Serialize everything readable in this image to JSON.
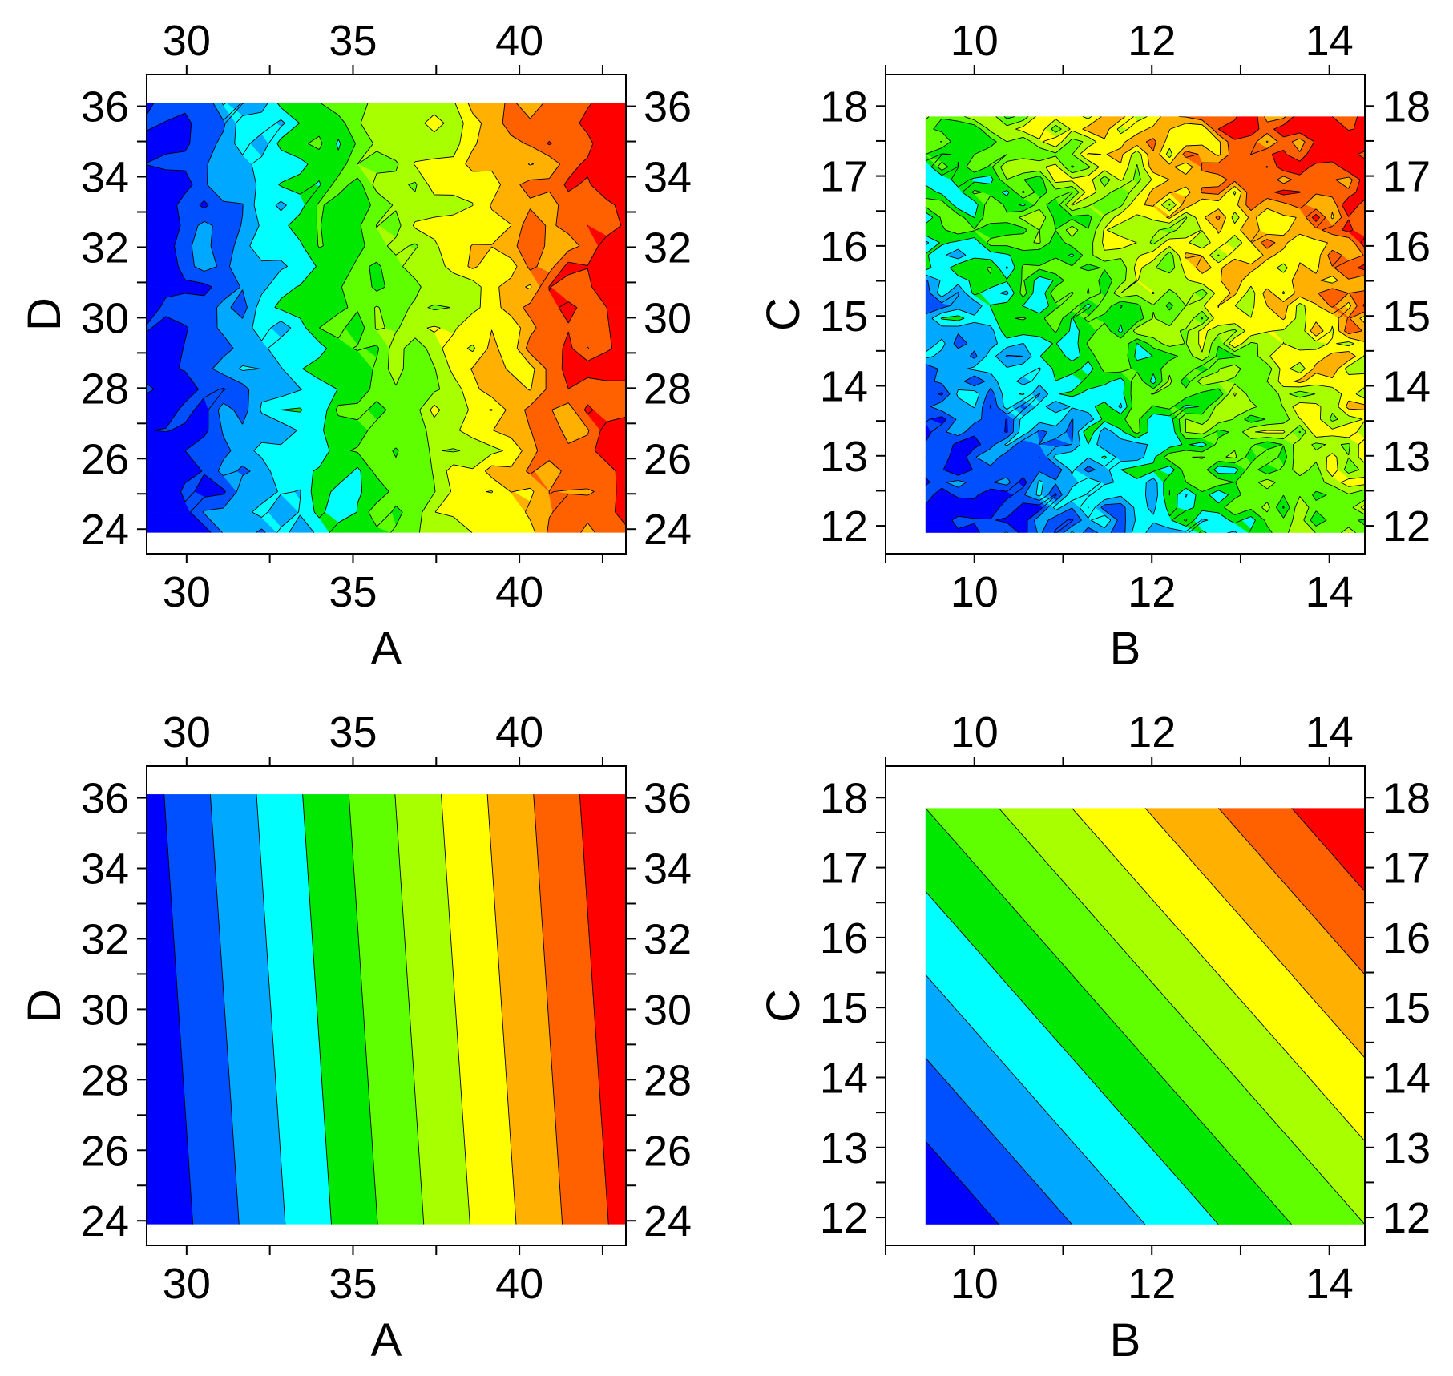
{
  "palette": [
    "#0000ff",
    "#0050ff",
    "#00a8ff",
    "#00ffff",
    "#00e800",
    "#60ff00",
    "#a8ff00",
    "#ffff00",
    "#ffb000",
    "#ff6000",
    "#ff0000"
  ],
  "chart_data": [
    {
      "type": "heatmap",
      "subtype": "filled-contour",
      "xlabel": "A",
      "ylabel": "D",
      "x_ticks": [
        30,
        35,
        40
      ],
      "y_ticks": [
        24,
        26,
        28,
        30,
        32,
        34,
        36
      ],
      "x_axis_range": [
        28.8,
        43.2
      ],
      "y_axis_range": [
        23.3,
        36.9
      ],
      "data_extent": {
        "x": [
          28.8,
          43.2
        ],
        "y": [
          23.9,
          36.1
        ]
      },
      "axes_mirrored": true,
      "surface": "noisy",
      "trend": {
        "x_coef": 1.0,
        "y_coef": 0.06
      },
      "grid_size": [
        26,
        22
      ],
      "noise": 0.09,
      "seed": 11,
      "levels": 11
    },
    {
      "type": "heatmap",
      "subtype": "filled-contour",
      "xlabel": "B",
      "ylabel": "C",
      "x_ticks": [
        10,
        12,
        14
      ],
      "y_ticks": [
        12,
        13,
        14,
        15,
        16,
        17,
        18
      ],
      "x_axis_range": [
        9.0,
        14.4
      ],
      "y_axis_range": [
        11.6,
        18.45
      ],
      "data_extent": {
        "x": [
          9.45,
          14.4
        ],
        "y": [
          11.9,
          17.85
        ]
      },
      "axes_mirrored": true,
      "surface": "noisy",
      "trend": {
        "x_coef": 0.6,
        "y_coef": 0.5
      },
      "grid_size": [
        28,
        34
      ],
      "noise": 0.14,
      "seed": 23,
      "levels": 11
    },
    {
      "type": "heatmap",
      "subtype": "filled-contour",
      "xlabel": "A",
      "ylabel": "D",
      "x_ticks": [
        30,
        35,
        40
      ],
      "y_ticks": [
        24,
        26,
        28,
        30,
        32,
        34,
        36
      ],
      "x_axis_range": [
        28.8,
        43.2
      ],
      "y_axis_range": [
        23.3,
        36.9
      ],
      "data_extent": {
        "x": [
          28.8,
          43.2
        ],
        "y": [
          23.9,
          36.1
        ]
      },
      "axes_mirrored": true,
      "surface": "linear",
      "trend": {
        "x_coef": 1.0,
        "y_coef": 0.06
      },
      "grid_size": [
        2,
        2
      ],
      "noise": 0,
      "seed": 0,
      "levels": 11
    },
    {
      "type": "heatmap",
      "subtype": "filled-contour",
      "xlabel": "B",
      "ylabel": "C",
      "x_ticks": [
        10,
        12,
        14
      ],
      "y_ticks": [
        12,
        13,
        14,
        15,
        16,
        17,
        18
      ],
      "x_axis_range": [
        9.0,
        14.4
      ],
      "y_axis_range": [
        11.6,
        18.45
      ],
      "data_extent": {
        "x": [
          9.45,
          14.4
        ],
        "y": [
          11.9,
          17.85
        ]
      },
      "axes_mirrored": true,
      "surface": "linear",
      "trend": {
        "x_coef": 0.6,
        "y_coef": 0.5
      },
      "grid_size": [
        2,
        2
      ],
      "noise": 0,
      "seed": 0,
      "levels": 11
    }
  ]
}
